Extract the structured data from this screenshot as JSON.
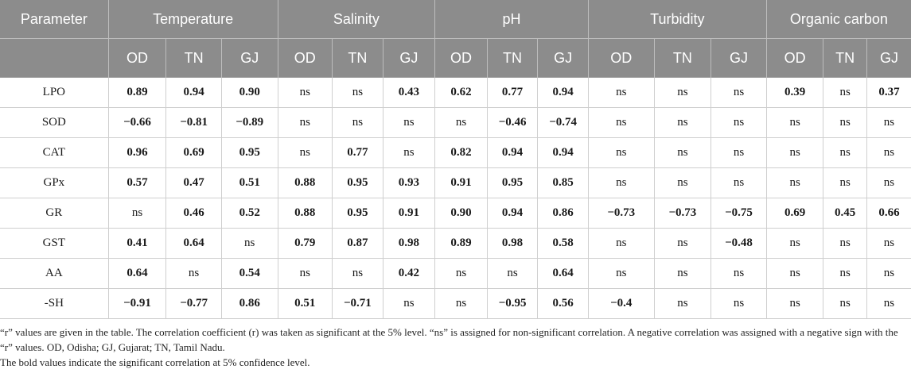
{
  "header": {
    "parameter": "Parameter",
    "groups": [
      "Temperature",
      "Salinity",
      "pH",
      "Turbidity",
      "Organic carbon"
    ],
    "sites": [
      "OD",
      "TN",
      "GJ"
    ]
  },
  "rows": [
    {
      "param": "LPO",
      "cells": [
        [
          "0.89",
          1
        ],
        [
          "0.94",
          1
        ],
        [
          "0.90",
          1
        ],
        [
          "ns",
          0
        ],
        [
          "ns",
          0
        ],
        [
          "0.43",
          1
        ],
        [
          "0.62",
          1
        ],
        [
          "0.77",
          1
        ],
        [
          "0.94",
          1
        ],
        [
          "ns",
          0
        ],
        [
          "ns",
          0
        ],
        [
          "ns",
          0
        ],
        [
          "0.39",
          1
        ],
        [
          "ns",
          0
        ],
        [
          "0.37",
          1
        ]
      ]
    },
    {
      "param": "SOD",
      "cells": [
        [
          "−0.66",
          1
        ],
        [
          "−0.81",
          1
        ],
        [
          "−0.89",
          1
        ],
        [
          "ns",
          0
        ],
        [
          "ns",
          0
        ],
        [
          "ns",
          0
        ],
        [
          "ns",
          0
        ],
        [
          "−0.46",
          1
        ],
        [
          "−0.74",
          1
        ],
        [
          "ns",
          0
        ],
        [
          "ns",
          0
        ],
        [
          "ns",
          0
        ],
        [
          "ns",
          0
        ],
        [
          "ns",
          0
        ],
        [
          "ns",
          0
        ]
      ]
    },
    {
      "param": "CAT",
      "cells": [
        [
          "0.96",
          1
        ],
        [
          "0.69",
          1
        ],
        [
          "0.95",
          1
        ],
        [
          "ns",
          0
        ],
        [
          "0.77",
          1
        ],
        [
          "ns",
          0
        ],
        [
          "0.82",
          1
        ],
        [
          "0.94",
          1
        ],
        [
          "0.94",
          1
        ],
        [
          "ns",
          0
        ],
        [
          "ns",
          0
        ],
        [
          "ns",
          0
        ],
        [
          "ns",
          0
        ],
        [
          "ns",
          0
        ],
        [
          "ns",
          0
        ]
      ]
    },
    {
      "param": "GPx",
      "cells": [
        [
          "0.57",
          1
        ],
        [
          "0.47",
          1
        ],
        [
          "0.51",
          1
        ],
        [
          "0.88",
          1
        ],
        [
          "0.95",
          1
        ],
        [
          "0.93",
          1
        ],
        [
          "0.91",
          1
        ],
        [
          "0.95",
          1
        ],
        [
          "0.85",
          1
        ],
        [
          "ns",
          0
        ],
        [
          "ns",
          0
        ],
        [
          "ns",
          0
        ],
        [
          "ns",
          0
        ],
        [
          "ns",
          0
        ],
        [
          "ns",
          0
        ]
      ]
    },
    {
      "param": "GR",
      "cells": [
        [
          "ns",
          0
        ],
        [
          "0.46",
          1
        ],
        [
          "0.52",
          1
        ],
        [
          "0.88",
          1
        ],
        [
          "0.95",
          1
        ],
        [
          "0.91",
          1
        ],
        [
          "0.90",
          1
        ],
        [
          "0.94",
          1
        ],
        [
          "0.86",
          1
        ],
        [
          "−0.73",
          1
        ],
        [
          "−0.73",
          1
        ],
        [
          "−0.75",
          1
        ],
        [
          "0.69",
          1
        ],
        [
          "0.45",
          1
        ],
        [
          "0.66",
          1
        ]
      ]
    },
    {
      "param": "GST",
      "cells": [
        [
          "0.41",
          1
        ],
        [
          "0.64",
          1
        ],
        [
          "ns",
          0
        ],
        [
          "0.79",
          1
        ],
        [
          "0.87",
          1
        ],
        [
          "0.98",
          1
        ],
        [
          "0.89",
          1
        ],
        [
          "0.98",
          1
        ],
        [
          "0.58",
          1
        ],
        [
          "ns",
          0
        ],
        [
          "ns",
          0
        ],
        [
          "−0.48",
          1
        ],
        [
          "ns",
          0
        ],
        [
          "ns",
          0
        ],
        [
          "ns",
          0
        ]
      ]
    },
    {
      "param": "AA",
      "cells": [
        [
          "0.64",
          1
        ],
        [
          "ns",
          0
        ],
        [
          "0.54",
          1
        ],
        [
          "ns",
          0
        ],
        [
          "ns",
          0
        ],
        [
          "0.42",
          1
        ],
        [
          "ns",
          0
        ],
        [
          "ns",
          0
        ],
        [
          "0.64",
          1
        ],
        [
          "ns",
          0
        ],
        [
          "ns",
          0
        ],
        [
          "ns",
          0
        ],
        [
          "ns",
          0
        ],
        [
          "ns",
          0
        ],
        [
          "ns",
          0
        ]
      ]
    },
    {
      "param": "-SH",
      "cells": [
        [
          "−0.91",
          1
        ],
        [
          "−0.77",
          1
        ],
        [
          "0.86",
          1
        ],
        [
          "0.51",
          1
        ],
        [
          "−0.71",
          1
        ],
        [
          "ns",
          0
        ],
        [
          "ns",
          0
        ],
        [
          "−0.95",
          1
        ],
        [
          "0.56",
          1
        ],
        [
          "−0.4",
          1
        ],
        [
          "ns",
          0
        ],
        [
          "ns",
          0
        ],
        [
          "ns",
          0
        ],
        [
          "ns",
          0
        ],
        [
          "ns",
          0
        ]
      ]
    }
  ],
  "notes": {
    "note1": "“r” values are given in the table. The correlation coefficient (r) was taken as significant at the 5% level. “ns” is assigned for non-significant correlation. A negative correlation was assigned with a negative sign with the “r” values. OD, Odisha; GJ, Gujarat; TN, Tamil Nadu.",
    "note2": "The bold values indicate the significant correlation at 5% confidence level."
  }
}
